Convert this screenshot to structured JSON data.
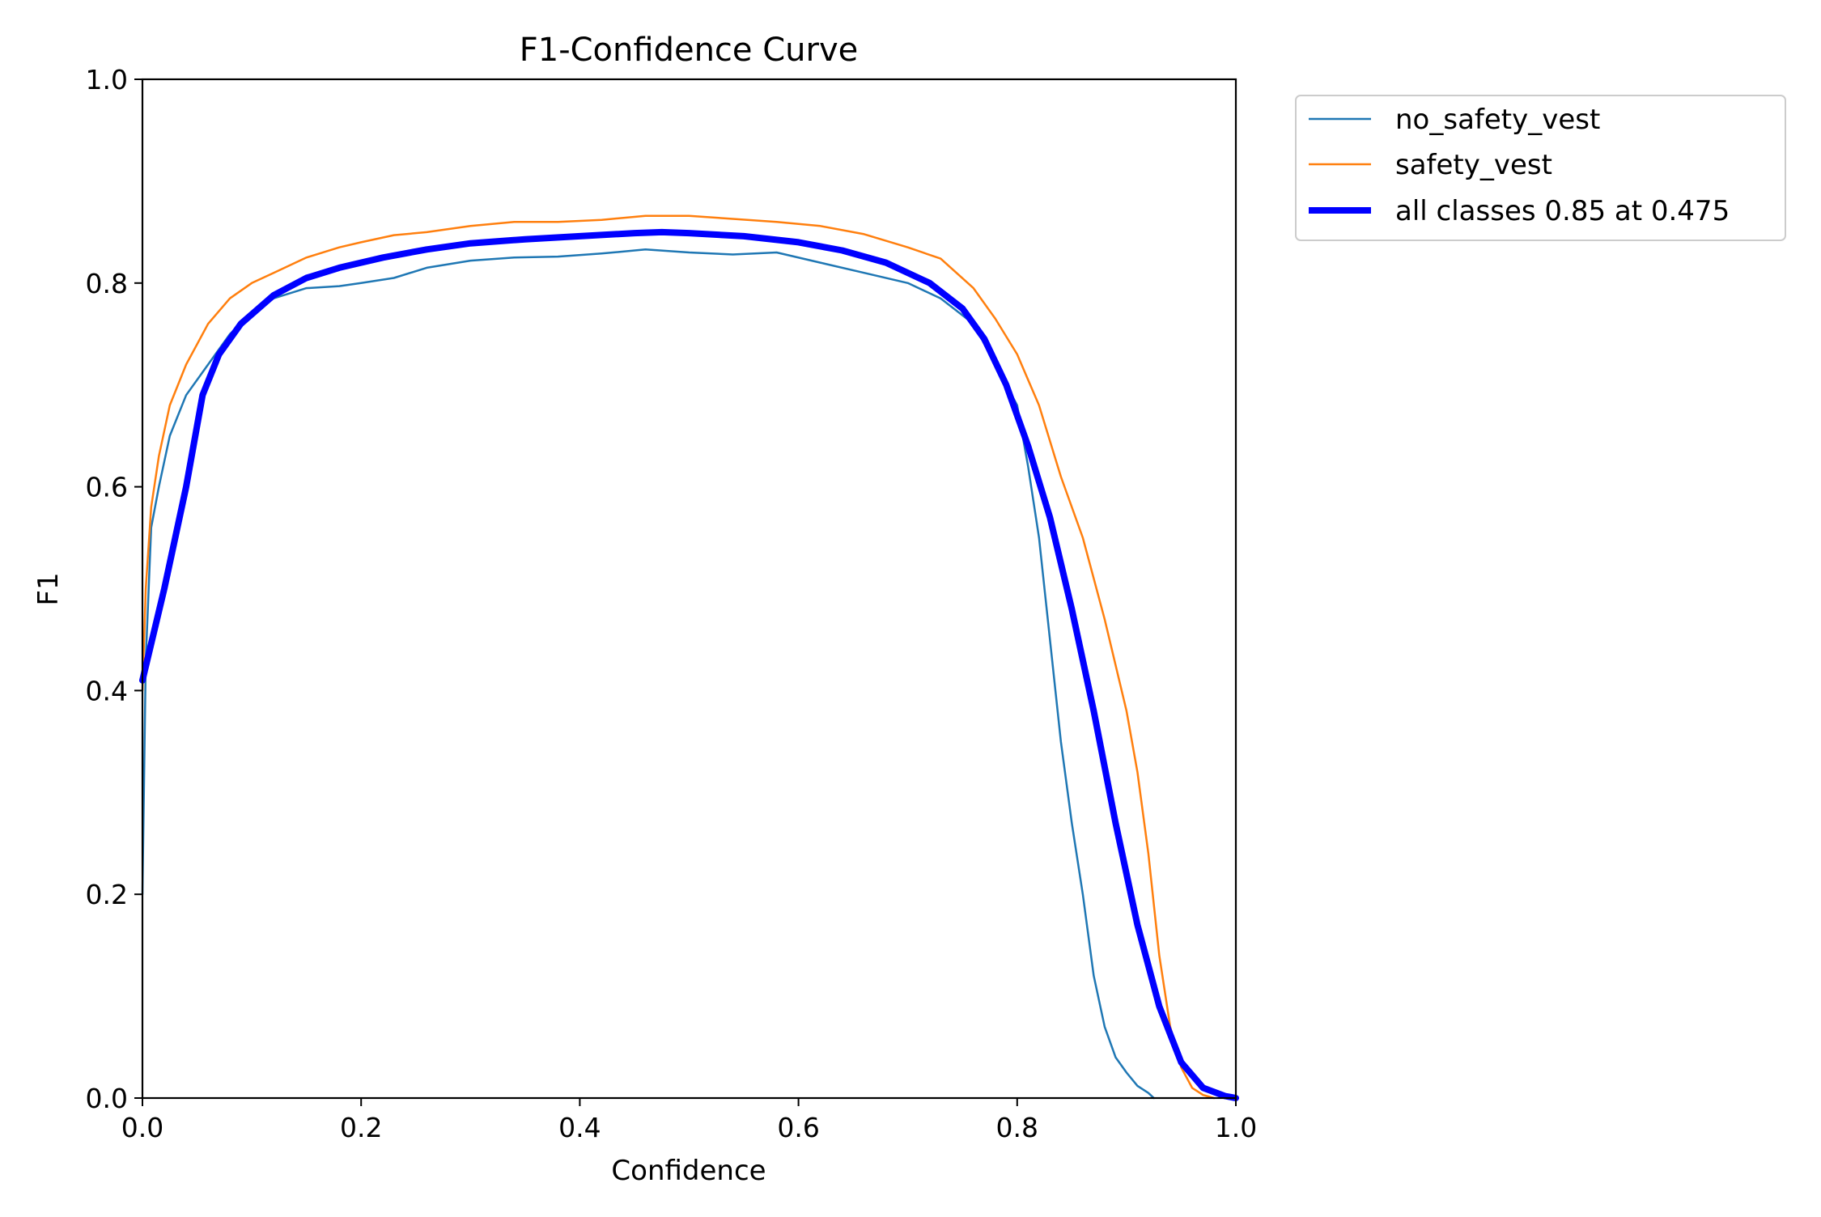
{
  "chart_data": {
    "type": "line",
    "title": "F1-Confidence Curve",
    "xlabel": "Confidence",
    "ylabel": "F1",
    "xlim": [
      0.0,
      1.0
    ],
    "ylim": [
      0.0,
      1.0
    ],
    "xticks": [
      "0.0",
      "0.2",
      "0.4",
      "0.6",
      "0.8",
      "1.0"
    ],
    "yticks": [
      "0.0",
      "0.2",
      "0.4",
      "0.6",
      "0.8",
      "1.0"
    ],
    "grid": false,
    "legend_position": "outside-top-right",
    "series": [
      {
        "name": "no_safety_vest",
        "color": "#1f77b4",
        "style": "thin",
        "x": [
          0.0,
          0.003,
          0.008,
          0.015,
          0.025,
          0.04,
          0.06,
          0.08,
          0.1,
          0.12,
          0.15,
          0.18,
          0.2,
          0.23,
          0.26,
          0.3,
          0.34,
          0.38,
          0.42,
          0.46,
          0.5,
          0.54,
          0.58,
          0.62,
          0.66,
          0.7,
          0.73,
          0.76,
          0.78,
          0.8,
          0.81,
          0.82,
          0.83,
          0.84,
          0.85,
          0.86,
          0.87,
          0.88,
          0.89,
          0.9,
          0.91,
          0.92,
          0.925
        ],
        "y": [
          0.2,
          0.43,
          0.56,
          0.6,
          0.65,
          0.69,
          0.72,
          0.75,
          0.77,
          0.785,
          0.795,
          0.797,
          0.8,
          0.805,
          0.815,
          0.822,
          0.825,
          0.826,
          0.829,
          0.833,
          0.83,
          0.828,
          0.83,
          0.82,
          0.81,
          0.8,
          0.785,
          0.76,
          0.72,
          0.68,
          0.62,
          0.55,
          0.45,
          0.35,
          0.27,
          0.2,
          0.12,
          0.07,
          0.04,
          0.025,
          0.012,
          0.005,
          0.0
        ]
      },
      {
        "name": "safety_vest",
        "color": "#ff7f0e",
        "style": "thin",
        "x": [
          0.0,
          0.003,
          0.008,
          0.015,
          0.025,
          0.04,
          0.06,
          0.08,
          0.1,
          0.12,
          0.15,
          0.18,
          0.2,
          0.23,
          0.26,
          0.3,
          0.34,
          0.38,
          0.42,
          0.46,
          0.5,
          0.54,
          0.58,
          0.62,
          0.66,
          0.7,
          0.73,
          0.76,
          0.78,
          0.8,
          0.82,
          0.84,
          0.86,
          0.88,
          0.9,
          0.91,
          0.92,
          0.93,
          0.94,
          0.95,
          0.96,
          0.97,
          0.98
        ],
        "y": [
          0.4,
          0.5,
          0.58,
          0.63,
          0.68,
          0.72,
          0.76,
          0.785,
          0.8,
          0.81,
          0.825,
          0.835,
          0.84,
          0.847,
          0.85,
          0.856,
          0.86,
          0.86,
          0.862,
          0.866,
          0.866,
          0.863,
          0.86,
          0.856,
          0.848,
          0.835,
          0.824,
          0.795,
          0.765,
          0.73,
          0.68,
          0.61,
          0.55,
          0.47,
          0.38,
          0.32,
          0.24,
          0.14,
          0.07,
          0.03,
          0.01,
          0.003,
          0.0
        ]
      },
      {
        "name": "all classes 0.85 at 0.475",
        "color": "#0000ff",
        "style": "thick",
        "x": [
          0.0,
          0.02,
          0.04,
          0.055,
          0.07,
          0.09,
          0.12,
          0.15,
          0.18,
          0.22,
          0.26,
          0.3,
          0.35,
          0.4,
          0.45,
          0.475,
          0.5,
          0.55,
          0.6,
          0.64,
          0.68,
          0.72,
          0.75,
          0.77,
          0.79,
          0.81,
          0.83,
          0.85,
          0.87,
          0.89,
          0.91,
          0.93,
          0.95,
          0.97,
          0.99,
          1.0
        ],
        "y": [
          0.41,
          0.5,
          0.6,
          0.69,
          0.73,
          0.76,
          0.788,
          0.805,
          0.815,
          0.825,
          0.833,
          0.839,
          0.843,
          0.846,
          0.849,
          0.85,
          0.849,
          0.846,
          0.84,
          0.832,
          0.82,
          0.8,
          0.775,
          0.745,
          0.7,
          0.64,
          0.57,
          0.48,
          0.38,
          0.27,
          0.17,
          0.09,
          0.035,
          0.01,
          0.002,
          0.0
        ]
      }
    ]
  }
}
